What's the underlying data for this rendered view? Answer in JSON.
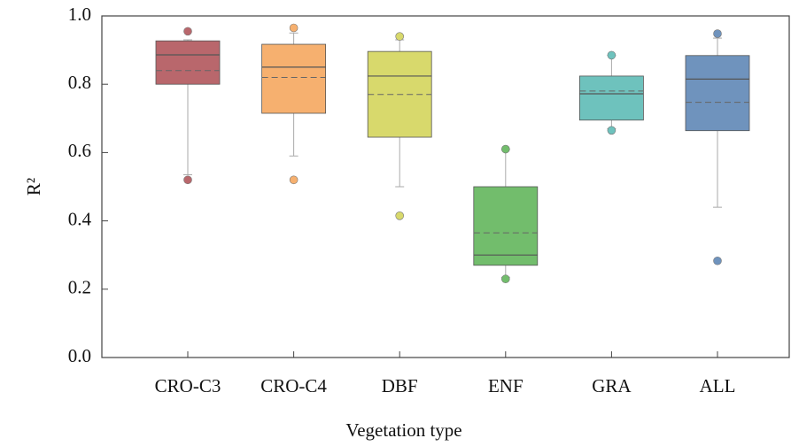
{
  "chart_data": {
    "type": "box",
    "xlabel": "Vegetation type",
    "ylabel": "R²",
    "categories": [
      "CRO-C3",
      "CRO-C4",
      "DBF",
      "ENF",
      "GRA",
      "ALL"
    ],
    "boxes": [
      {
        "color": "#b9676c",
        "whislo": 0.535,
        "q1": 0.8,
        "med": 0.886,
        "mean": 0.84,
        "q3": 0.927,
        "whishi": 0.93,
        "fliers": [
          0.955,
          0.52
        ]
      },
      {
        "color": "#f6b06f",
        "whislo": 0.59,
        "q1": 0.715,
        "med": 0.85,
        "mean": 0.82,
        "q3": 0.917,
        "whishi": 0.95,
        "fliers": [
          0.965,
          0.52
        ]
      },
      {
        "color": "#d8d96c",
        "whislo": 0.5,
        "q1": 0.645,
        "med": 0.824,
        "mean": 0.77,
        "q3": 0.896,
        "whishi": 0.93,
        "fliers": [
          0.94,
          0.415
        ]
      },
      {
        "color": "#72bd6c",
        "whislo": 0.235,
        "q1": 0.27,
        "med": 0.3,
        "mean": 0.365,
        "q3": 0.5,
        "whishi": 0.61,
        "fliers": [
          0.61,
          0.23
        ]
      },
      {
        "color": "#6ec2bd",
        "whislo": 0.67,
        "q1": 0.695,
        "med": 0.772,
        "mean": 0.78,
        "q3": 0.824,
        "whishi": 0.885,
        "fliers": [
          0.885,
          0.665
        ]
      },
      {
        "color": "#6f93bd",
        "whislo": 0.44,
        "q1": 0.664,
        "med": 0.815,
        "mean": 0.747,
        "q3": 0.884,
        "whishi": 0.935,
        "fliers": [
          0.948,
          0.283
        ]
      }
    ],
    "ylim": [
      0,
      1
    ],
    "yticks": [
      {
        "value": 0,
        "label": "0.0"
      },
      0.2,
      0.4,
      0.6,
      0.8,
      {
        "value": 1,
        "label": "1.0"
      }
    ]
  }
}
